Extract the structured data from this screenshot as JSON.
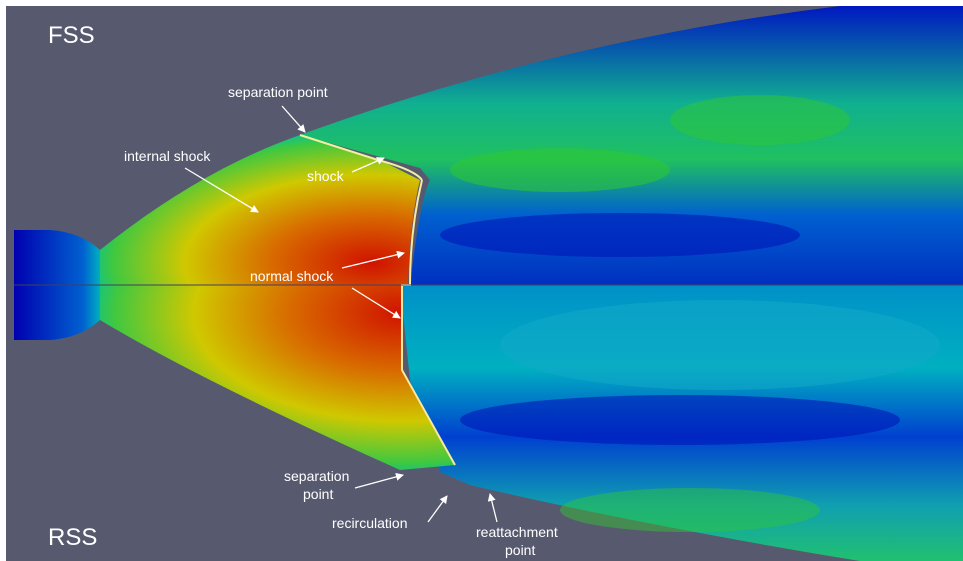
{
  "labels": {
    "fss": "FSS",
    "rss": "RSS",
    "separation_point_top": "separation point",
    "internal_shock": "internal shock",
    "shock": "shock",
    "normal_shock": "normal shock",
    "separation_point_bottom_line1": "separation",
    "separation_point_bottom_line2": "point",
    "recirculation": "recirculation",
    "reattachment_line1": "reattachment",
    "reattachment_line2": "point"
  },
  "colors": {
    "background": "#575a6e",
    "flow_low": "#0000b8",
    "flow_mid": "#00c8c8",
    "flow_green": "#2ad21e",
    "flow_yellow": "#d2d200",
    "flow_high": "#d21400"
  }
}
